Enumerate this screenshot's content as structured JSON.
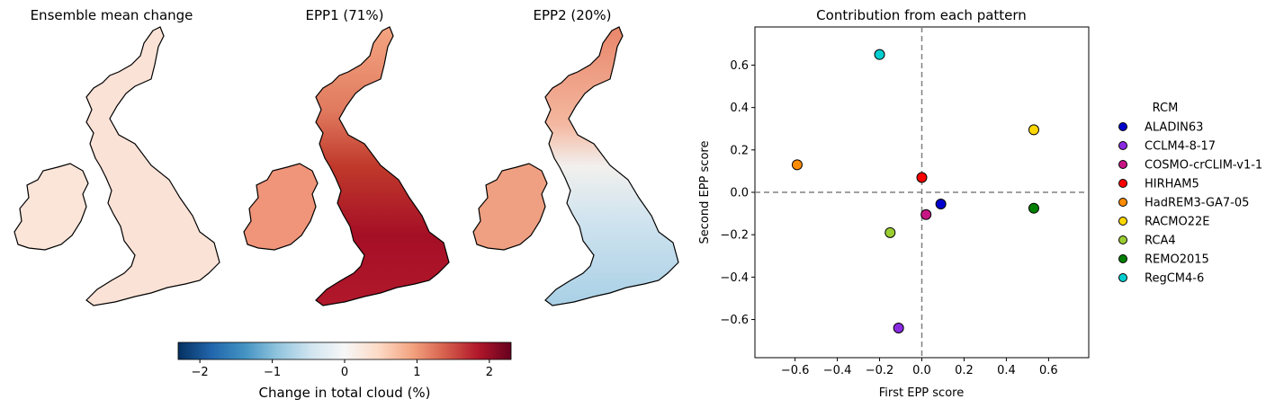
{
  "maps": {
    "titles": [
      "Ensemble mean change",
      "EPP1 (71%)",
      "EPP2 (20%)"
    ],
    "colorbar": {
      "label": "Change in total cloud (%)",
      "range": [
        -2.3,
        2.3
      ],
      "ticks": [
        -2,
        -1,
        0,
        1,
        2
      ],
      "tick_labels": [
        "−2",
        "−1",
        "0",
        "1",
        "2"
      ],
      "colormap": "RdBu_r"
    }
  },
  "chart_data": {
    "type": "scatter",
    "title": "Contribution from each pattern",
    "xlabel": "First EPP score",
    "ylabel": "Second EPP score",
    "xlim": [
      -0.79,
      0.79
    ],
    "ylim": [
      -0.78,
      0.78
    ],
    "xticks": [
      -0.6,
      -0.4,
      -0.2,
      0.0,
      0.2,
      0.4,
      0.6
    ],
    "xtick_labels": [
      "−0.6",
      "−0.4",
      "−0.2",
      "0.0",
      "0.2",
      "0.4",
      "0.6"
    ],
    "yticks": [
      -0.6,
      -0.4,
      -0.2,
      0.0,
      0.2,
      0.4,
      0.6
    ],
    "ytick_labels": [
      "−0.6",
      "−0.4",
      "−0.2",
      "0.0",
      "0.2",
      "0.4",
      "0.6"
    ],
    "reference_lines": {
      "x": 0,
      "y": 0,
      "style": "dashed",
      "color": "#808080"
    },
    "legend": {
      "title": "RCM",
      "placement": "outside-right"
    },
    "series": [
      {
        "name": "ALADIN63",
        "color": "#0000cd",
        "x": 0.09,
        "y": -0.055
      },
      {
        "name": "CCLM4-8-17",
        "color": "#8a2be2",
        "x": -0.11,
        "y": -0.64
      },
      {
        "name": "COSMO-crCLIM-v1-1",
        "color": "#c71585",
        "x": 0.02,
        "y": -0.105
      },
      {
        "name": "HIRHAM5",
        "color": "#ff0000",
        "x": 0.0,
        "y": 0.07
      },
      {
        "name": "HadREM3-GA7-05",
        "color": "#ff8c00",
        "x": -0.59,
        "y": 0.13
      },
      {
        "name": "RACMO22E",
        "color": "#ffd700",
        "x": 0.53,
        "y": 0.295
      },
      {
        "name": "RCA4",
        "color": "#9acd32",
        "x": -0.15,
        "y": -0.19
      },
      {
        "name": "REMO2015",
        "color": "#008000",
        "x": 0.53,
        "y": -0.075
      },
      {
        "name": "RegCM4-6",
        "color": "#00ced1",
        "x": -0.2,
        "y": 0.65
      }
    ]
  }
}
